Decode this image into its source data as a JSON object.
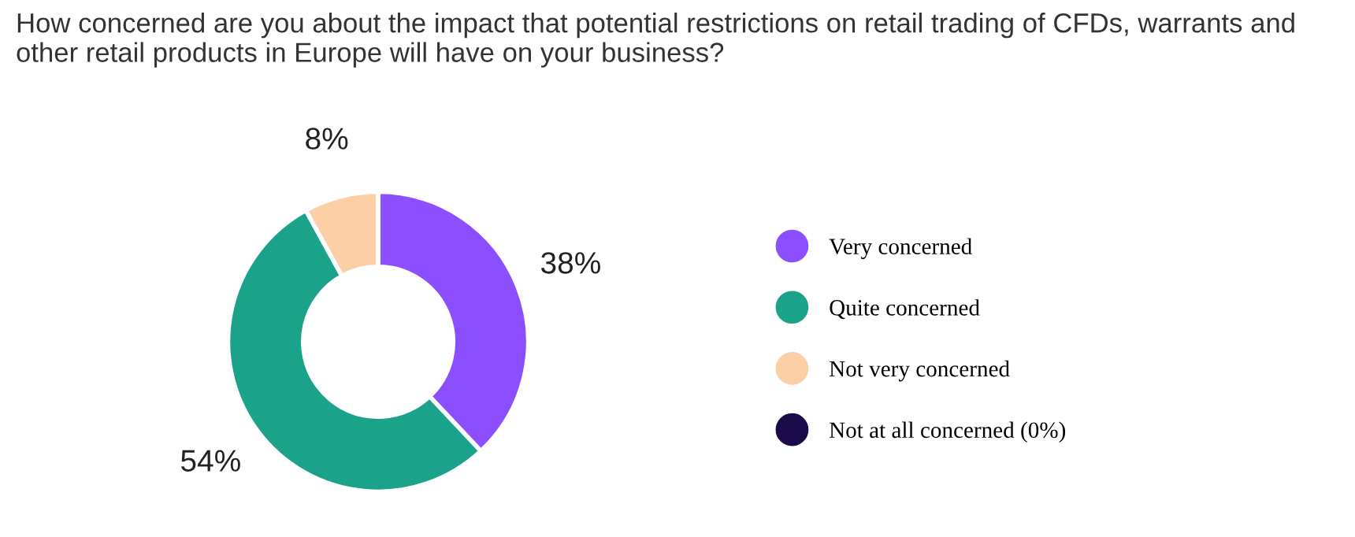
{
  "chart_data": {
    "type": "donut",
    "title": "How concerned are you about the impact that potential restrictions on retail trading of CFDs, warrants and other retail products in Europe will have on your business?",
    "categories": [
      "Very concerned",
      "Quite concerned",
      "Not very concerned",
      "Not at all concerned (0%)"
    ],
    "values": [
      38,
      54,
      8,
      0
    ],
    "colors": [
      "#8c4fff",
      "#1aa38a",
      "#fdcfa6",
      "#1c0b4b"
    ],
    "value_labels": [
      "38%",
      "54%",
      "8%",
      null
    ],
    "legend": "right"
  }
}
